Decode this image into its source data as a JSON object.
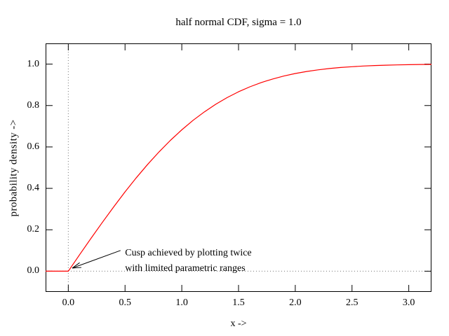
{
  "chart_data": {
    "type": "line",
    "title": "half normal CDF, sigma = 1.0",
    "xlabel": "x ->",
    "ylabel": "probability density ->",
    "xlim": [
      -0.2,
      3.2
    ],
    "ylim": [
      -0.1,
      1.1
    ],
    "x_tick_values": [
      0.0,
      0.5,
      1.0,
      1.5,
      2.0,
      2.5,
      3.0
    ],
    "x_tick_labels": [
      "0.0",
      "0.5",
      "1.0",
      "1.5",
      "2.0",
      "2.5",
      "3.0"
    ],
    "y_tick_values": [
      0.0,
      0.2,
      0.4,
      0.6,
      0.8,
      1.0
    ],
    "y_tick_labels": [
      "0.0",
      "0.2",
      "0.4",
      "0.6",
      "0.8",
      "1.0"
    ],
    "grid": false,
    "legend": "none",
    "axis_color": "#000000",
    "background_color": "#ffffff",
    "zeroaxis": {
      "x": true,
      "y": true,
      "style": "dotted",
      "color": "#777777"
    },
    "series": [
      {
        "name": "half normal CDF",
        "color": "#ff0000",
        "x": [
          -0.2,
          -0.1,
          0.0,
          0.1,
          0.2,
          0.3,
          0.4,
          0.5,
          0.6,
          0.7,
          0.8,
          0.9,
          1.0,
          1.1,
          1.2,
          1.3,
          1.4,
          1.5,
          1.6,
          1.7,
          1.8,
          1.9,
          2.0,
          2.1,
          2.2,
          2.3,
          2.4,
          2.5,
          2.6,
          2.7,
          2.8,
          2.9,
          3.0,
          3.1,
          3.2
        ],
        "y": [
          0.0,
          0.0,
          0.0,
          0.0797,
          0.1585,
          0.2358,
          0.3108,
          0.3829,
          0.4515,
          0.5161,
          0.5763,
          0.6319,
          0.6827,
          0.7287,
          0.7699,
          0.8064,
          0.8385,
          0.8664,
          0.8904,
          0.9109,
          0.9281,
          0.9426,
          0.9545,
          0.9643,
          0.9722,
          0.9786,
          0.9836,
          0.9876,
          0.9907,
          0.9931,
          0.9949,
          0.9963,
          0.9973,
          0.9981,
          0.9986
        ]
      }
    ],
    "annotation": {
      "line1": "Cusp achieved by plotting twice",
      "line2": "with limited parametric ranges",
      "text_x": 0.5,
      "text_y": 0.123,
      "arrow_from_x": 0.46,
      "arrow_from_y": 0.1,
      "arrow_to_x": 0.035,
      "arrow_to_y": 0.015,
      "arrow_color": "#000000"
    }
  }
}
